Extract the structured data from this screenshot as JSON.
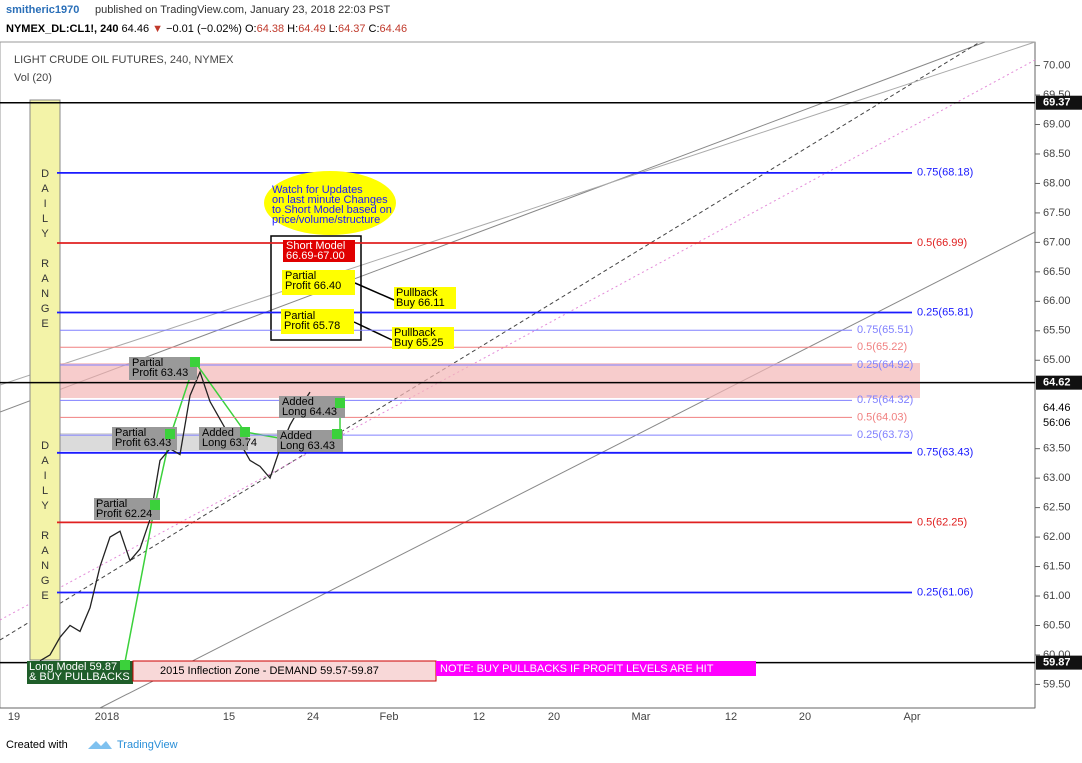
{
  "header": {
    "author": "smitheric1970",
    "published": "published on TradingView.com, January 23, 2018 22:03 PST",
    "quote": [
      {
        "text": "NYMEX_DL:CL1!, 240",
        "color": "#000000"
      },
      {
        "text": " 64.46 ",
        "color": "#000000"
      },
      {
        "text": "▼",
        "color": "#c0392b"
      },
      {
        "text": " −0.01 (−0.02%) ",
        "color": "#000000"
      },
      {
        "text": "O:",
        "color": "#000000"
      },
      {
        "text": "64.38",
        "color": "#c0392b"
      },
      {
        "text": " H:",
        "color": "#000000"
      },
      {
        "text": "64.49",
        "color": "#c0392b"
      },
      {
        "text": " L:",
        "color": "#000000"
      },
      {
        "text": "64.37",
        "color": "#c0392b"
      },
      {
        "text": " C:",
        "color": "#000000"
      },
      {
        "text": "64.46",
        "color": "#c0392b"
      }
    ]
  },
  "chart_data": {
    "type": "line",
    "title": "LIGHT CRUDE OIL FUTURES, 240, NYMEX",
    "subtitle": "Vol (20)",
    "series": [
      {
        "name": "CL1!",
        "color": "#222222",
        "values": [
          59.9,
          60.0,
          60.3,
          60.5,
          60.4,
          60.8,
          61.5,
          62.0,
          62.1,
          61.6,
          61.8,
          62.3,
          63.3,
          63.5,
          63.4,
          64.4,
          64.8,
          64.3,
          64.0,
          63.7,
          63.6,
          63.3,
          63.2,
          63.0,
          63.5,
          63.9,
          64.2,
          64.46
        ]
      }
    ],
    "ylim": [
      59.1,
      70.4
    ],
    "yticks": [
      {
        "value": 59.5,
        "label": "59.50"
      },
      {
        "value": 60,
        "label": "60.00"
      },
      {
        "value": 60.5,
        "label": "60.50"
      },
      {
        "value": 61,
        "label": "61.00"
      },
      {
        "value": 61.5,
        "label": "61.50"
      },
      {
        "value": 62,
        "label": "62.00"
      },
      {
        "value": 62.5,
        "label": "62.50"
      },
      {
        "value": 63,
        "label": "63.00"
      },
      {
        "value": 63.5,
        "label": "63.50"
      },
      {
        "value": 65,
        "label": "65.00"
      },
      {
        "value": 65.5,
        "label": "65.50"
      },
      {
        "value": 66,
        "label": "66.00"
      },
      {
        "value": 66.5,
        "label": "66.50"
      },
      {
        "value": 67,
        "label": "67.00"
      },
      {
        "value": 67.5,
        "label": "67.50"
      },
      {
        "value": 68,
        "label": "68.00"
      },
      {
        "value": 68.5,
        "label": "68.50"
      },
      {
        "value": 69,
        "label": "69.00"
      },
      {
        "value": 69.5,
        "label": "69.50"
      },
      {
        "value": 70,
        "label": "70.00"
      }
    ],
    "xticks": [
      "19",
      "2018",
      "15",
      "24",
      "Feb",
      "12",
      "20",
      "Mar",
      "12",
      "20",
      "Apr"
    ],
    "markers": [
      69.37,
      64.62,
      59.87
    ],
    "last_price": 64.46,
    "countdown": "56:06",
    "levels": [
      {
        "label": "0.75(68.18)",
        "value": 68.18,
        "color": "#1a1aff"
      },
      {
        "label": "0.5(66.99)",
        "value": 66.99,
        "color": "#e02020"
      },
      {
        "label": "0.25(65.81)",
        "value": 65.81,
        "color": "#1a1aff"
      },
      {
        "label": "0.75(65.51)",
        "value": 65.51,
        "color": "#8080ff"
      },
      {
        "label": "0.5(65.22)",
        "value": 65.22,
        "color": "#f08080"
      },
      {
        "label": "0.25(64.92)",
        "value": 64.92,
        "color": "#8080ff"
      },
      {
        "label": "0.75(64.32)",
        "value": 64.32,
        "color": "#8080ff"
      },
      {
        "label": "0.5(64.03)",
        "value": 64.03,
        "color": "#f08080"
      },
      {
        "label": "0.25(63.73)",
        "value": 63.73,
        "color": "#8080ff"
      },
      {
        "label": "0.75(63.43)",
        "value": 63.43,
        "color": "#1a1aff"
      },
      {
        "label": "0.5(62.25)",
        "value": 62.25,
        "color": "#e02020"
      },
      {
        "label": "0.25(61.06)",
        "value": 61.06,
        "color": "#1a1aff"
      }
    ],
    "daily_range": "DAILY RANGE",
    "annotations": [
      [
        "Watch for Updates",
        "on last minute Changes",
        "to Short Model based on",
        "price/volume/structure"
      ],
      [
        "Short Model",
        "66.69-67.00"
      ],
      [
        "Partial",
        "Profit 66.40"
      ],
      [
        "Pullback",
        "Buy 66.11"
      ],
      [
        "Partial",
        "Profit 65.78"
      ],
      [
        "Pullback",
        "Buy 65.25"
      ],
      [
        "Partial",
        "Profit 63.43"
      ],
      [
        "Added",
        "Long 64.43"
      ],
      [
        "Partial",
        "Profit 63.43"
      ],
      [
        "Added",
        "Long 63.74"
      ],
      [
        "Added",
        "Long 63.43"
      ],
      [
        "Partial",
        "Profit 62.24"
      ],
      [
        "Long Model 59.87",
        "& BUY PULLBACKS"
      ],
      [
        "2015 Inflection Zone - DEMAND 59.57-59.87"
      ],
      [
        "NOTE: BUY PULLBACKS IF PROFIT LEVELS ARE HIT"
      ]
    ]
  },
  "footer": {
    "created": "Created with",
    "brand": "TradingView"
  }
}
